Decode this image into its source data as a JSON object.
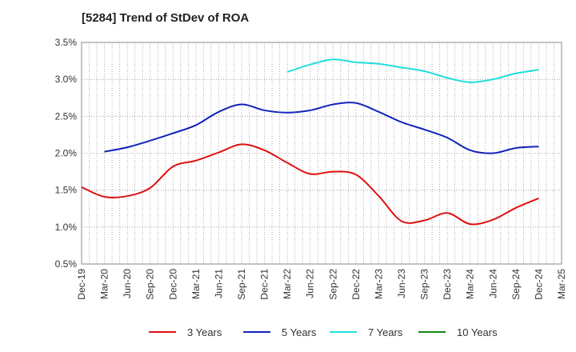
{
  "title": "[5284]  Trend of StDev of ROA",
  "chart_data": {
    "type": "line",
    "title": "[5284]  Trend of StDev of ROA",
    "xlabel": "",
    "ylabel": "",
    "ylim": [
      0.5,
      3.5
    ],
    "yticks": [
      "0.5%",
      "1.0%",
      "1.5%",
      "2.0%",
      "2.5%",
      "3.0%",
      "3.5%"
    ],
    "yticks_values": [
      0.5,
      1.0,
      1.5,
      2.0,
      2.5,
      3.0,
      3.5
    ],
    "categories": [
      "Dec-19",
      "Mar-20",
      "Jun-20",
      "Sep-20",
      "Dec-20",
      "Mar-21",
      "Jun-21",
      "Sep-21",
      "Dec-21",
      "Mar-22",
      "Jun-22",
      "Sep-22",
      "Dec-22",
      "Mar-23",
      "Jun-23",
      "Sep-23",
      "Dec-23",
      "Mar-24",
      "Jun-24",
      "Sep-24",
      "Dec-24",
      "Mar-25"
    ],
    "grid": true,
    "legend_position": "bottom",
    "series": [
      {
        "name": "3 Years",
        "color": "#dd1111",
        "values": [
          1.54,
          1.41,
          1.42,
          1.53,
          1.82,
          1.9,
          2.01,
          2.12,
          2.04,
          1.87,
          1.72,
          1.75,
          1.71,
          1.42,
          1.08,
          1.09,
          1.19,
          1.04,
          1.1,
          1.26,
          1.39,
          null
        ],
        "start": 0
      },
      {
        "name": "5 Years",
        "color": "#1122bb",
        "values": [
          null,
          2.02,
          2.08,
          2.17,
          2.27,
          2.38,
          2.56,
          2.66,
          2.58,
          2.55,
          2.58,
          2.66,
          2.68,
          2.56,
          2.42,
          2.32,
          2.21,
          2.04,
          2.0,
          2.07,
          2.09,
          null
        ]
      },
      {
        "name": "7 Years",
        "color": "#22dddd",
        "values": [
          null,
          null,
          null,
          null,
          null,
          null,
          null,
          null,
          null,
          3.1,
          3.2,
          3.27,
          3.23,
          3.21,
          3.16,
          3.11,
          3.02,
          2.96,
          3.0,
          3.08,
          3.13,
          null
        ]
      },
      {
        "name": "10 Years",
        "color": "#118811",
        "values": [
          null,
          null,
          null,
          null,
          null,
          null,
          null,
          null,
          null,
          null,
          null,
          null,
          null,
          null,
          null,
          null,
          null,
          null,
          null,
          null,
          null,
          null
        ]
      }
    ]
  }
}
